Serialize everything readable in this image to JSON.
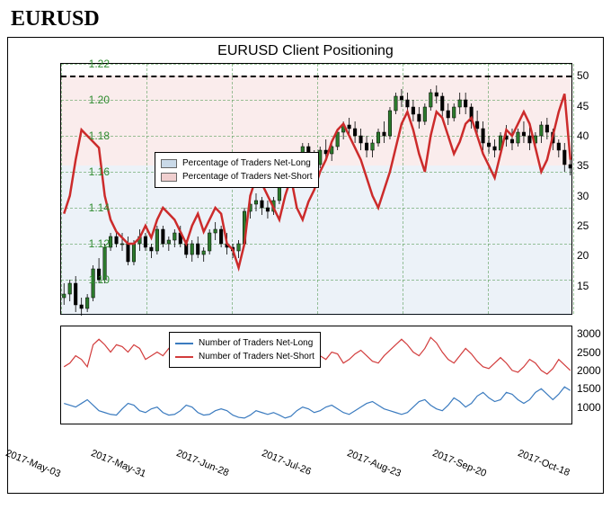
{
  "page_title": "EURUSD",
  "chart_title": "EURUSD Client Positioning",
  "main": {
    "left_axis": {
      "color": "#2e8b2e",
      "min": 1.08,
      "max": 1.22,
      "ticks": [
        1.1,
        1.12,
        1.14,
        1.16,
        1.18,
        1.2,
        1.22
      ],
      "candle_color": "#2c7a2c"
    },
    "right_axis": {
      "color": "#000000",
      "min": 10,
      "max": 52,
      "ticks": [
        15,
        20,
        25,
        30,
        35,
        40,
        45,
        50
      ],
      "threshold": 50
    },
    "pct_short_line_color": "#cc2b2b",
    "pct_short_line_width": 2.5,
    "shade_long_color": "rgba(100,150,200,0.12)",
    "shade_short_color": "rgba(220,120,120,0.14)",
    "shade_split_pct": 35,
    "grid_color": "#5a9e5a",
    "legend": {
      "long_label": "Percentage of Traders Net-Long",
      "short_label": "Percentage of Traders Net-Short",
      "long_swatch": "#c9d9e8",
      "short_swatch": "#f0cfcf"
    },
    "price_data": [
      {
        "o": 1.09,
        "h": 1.098,
        "l": 1.086,
        "c": 1.092
      },
      {
        "o": 1.092,
        "h": 1.1,
        "l": 1.088,
        "c": 1.098
      },
      {
        "o": 1.098,
        "h": 1.102,
        "l": 1.082,
        "c": 1.086
      },
      {
        "o": 1.086,
        "h": 1.09,
        "l": 1.08,
        "c": 1.084
      },
      {
        "o": 1.084,
        "h": 1.092,
        "l": 1.082,
        "c": 1.09
      },
      {
        "o": 1.09,
        "h": 1.108,
        "l": 1.088,
        "c": 1.106
      },
      {
        "o": 1.106,
        "h": 1.112,
        "l": 1.098,
        "c": 1.1
      },
      {
        "o": 1.1,
        "h": 1.12,
        "l": 1.098,
        "c": 1.118
      },
      {
        "o": 1.118,
        "h": 1.126,
        "l": 1.116,
        "c": 1.124
      },
      {
        "o": 1.124,
        "h": 1.126,
        "l": 1.118,
        "c": 1.12
      },
      {
        "o": 1.12,
        "h": 1.126,
        "l": 1.116,
        "c": 1.12
      },
      {
        "o": 1.12,
        "h": 1.124,
        "l": 1.108,
        "c": 1.11
      },
      {
        "o": 1.11,
        "h": 1.122,
        "l": 1.108,
        "c": 1.12
      },
      {
        "o": 1.12,
        "h": 1.128,
        "l": 1.116,
        "c": 1.124
      },
      {
        "o": 1.124,
        "h": 1.126,
        "l": 1.116,
        "c": 1.118
      },
      {
        "o": 1.118,
        "h": 1.12,
        "l": 1.112,
        "c": 1.116
      },
      {
        "o": 1.116,
        "h": 1.13,
        "l": 1.114,
        "c": 1.128
      },
      {
        "o": 1.128,
        "h": 1.13,
        "l": 1.118,
        "c": 1.12
      },
      {
        "o": 1.12,
        "h": 1.124,
        "l": 1.116,
        "c": 1.122
      },
      {
        "o": 1.122,
        "h": 1.128,
        "l": 1.118,
        "c": 1.126
      },
      {
        "o": 1.126,
        "h": 1.13,
        "l": 1.118,
        "c": 1.12
      },
      {
        "o": 1.12,
        "h": 1.122,
        "l": 1.112,
        "c": 1.114
      },
      {
        "o": 1.114,
        "h": 1.122,
        "l": 1.11,
        "c": 1.12
      },
      {
        "o": 1.12,
        "h": 1.124,
        "l": 1.112,
        "c": 1.114
      },
      {
        "o": 1.114,
        "h": 1.118,
        "l": 1.11,
        "c": 1.116
      },
      {
        "o": 1.116,
        "h": 1.128,
        "l": 1.114,
        "c": 1.126
      },
      {
        "o": 1.126,
        "h": 1.132,
        "l": 1.122,
        "c": 1.128
      },
      {
        "o": 1.128,
        "h": 1.13,
        "l": 1.118,
        "c": 1.12
      },
      {
        "o": 1.12,
        "h": 1.126,
        "l": 1.114,
        "c": 1.118
      },
      {
        "o": 1.118,
        "h": 1.12,
        "l": 1.112,
        "c": 1.116
      },
      {
        "o": 1.116,
        "h": 1.122,
        "l": 1.112,
        "c": 1.12
      },
      {
        "o": 1.12,
        "h": 1.14,
        "l": 1.118,
        "c": 1.138
      },
      {
        "o": 1.138,
        "h": 1.146,
        "l": 1.134,
        "c": 1.142
      },
      {
        "o": 1.142,
        "h": 1.148,
        "l": 1.138,
        "c": 1.144
      },
      {
        "o": 1.144,
        "h": 1.146,
        "l": 1.136,
        "c": 1.14
      },
      {
        "o": 1.14,
        "h": 1.144,
        "l": 1.134,
        "c": 1.138
      },
      {
        "o": 1.138,
        "h": 1.146,
        "l": 1.136,
        "c": 1.144
      },
      {
        "o": 1.144,
        "h": 1.156,
        "l": 1.142,
        "c": 1.154
      },
      {
        "o": 1.154,
        "h": 1.164,
        "l": 1.152,
        "c": 1.162
      },
      {
        "o": 1.162,
        "h": 1.166,
        "l": 1.156,
        "c": 1.16
      },
      {
        "o": 1.16,
        "h": 1.168,
        "l": 1.158,
        "c": 1.166
      },
      {
        "o": 1.166,
        "h": 1.176,
        "l": 1.162,
        "c": 1.174
      },
      {
        "o": 1.174,
        "h": 1.176,
        "l": 1.162,
        "c": 1.166
      },
      {
        "o": 1.166,
        "h": 1.172,
        "l": 1.16,
        "c": 1.164
      },
      {
        "o": 1.164,
        "h": 1.174,
        "l": 1.162,
        "c": 1.172
      },
      {
        "o": 1.172,
        "h": 1.178,
        "l": 1.166,
        "c": 1.17
      },
      {
        "o": 1.17,
        "h": 1.176,
        "l": 1.166,
        "c": 1.174
      },
      {
        "o": 1.174,
        "h": 1.184,
        "l": 1.172,
        "c": 1.182
      },
      {
        "o": 1.182,
        "h": 1.188,
        "l": 1.178,
        "c": 1.186
      },
      {
        "o": 1.186,
        "h": 1.19,
        "l": 1.18,
        "c": 1.184
      },
      {
        "o": 1.184,
        "h": 1.188,
        "l": 1.176,
        "c": 1.18
      },
      {
        "o": 1.18,
        "h": 1.184,
        "l": 1.172,
        "c": 1.176
      },
      {
        "o": 1.176,
        "h": 1.18,
        "l": 1.168,
        "c": 1.172
      },
      {
        "o": 1.172,
        "h": 1.178,
        "l": 1.168,
        "c": 1.176
      },
      {
        "o": 1.176,
        "h": 1.184,
        "l": 1.174,
        "c": 1.182
      },
      {
        "o": 1.182,
        "h": 1.188,
        "l": 1.176,
        "c": 1.18
      },
      {
        "o": 1.18,
        "h": 1.196,
        "l": 1.178,
        "c": 1.194
      },
      {
        "o": 1.194,
        "h": 1.204,
        "l": 1.192,
        "c": 1.202
      },
      {
        "o": 1.202,
        "h": 1.206,
        "l": 1.196,
        "c": 1.2
      },
      {
        "o": 1.2,
        "h": 1.204,
        "l": 1.192,
        "c": 1.196
      },
      {
        "o": 1.196,
        "h": 1.2,
        "l": 1.188,
        "c": 1.192
      },
      {
        "o": 1.192,
        "h": 1.196,
        "l": 1.184,
        "c": 1.188
      },
      {
        "o": 1.188,
        "h": 1.198,
        "l": 1.186,
        "c": 1.196
      },
      {
        "o": 1.196,
        "h": 1.206,
        "l": 1.194,
        "c": 1.204
      },
      {
        "o": 1.204,
        "h": 1.208,
        "l": 1.198,
        "c": 1.202
      },
      {
        "o": 1.202,
        "h": 1.204,
        "l": 1.19,
        "c": 1.194
      },
      {
        "o": 1.194,
        "h": 1.198,
        "l": 1.186,
        "c": 1.19
      },
      {
        "o": 1.19,
        "h": 1.198,
        "l": 1.188,
        "c": 1.196
      },
      {
        "o": 1.196,
        "h": 1.204,
        "l": 1.192,
        "c": 1.2
      },
      {
        "o": 1.2,
        "h": 1.204,
        "l": 1.192,
        "c": 1.196
      },
      {
        "o": 1.196,
        "h": 1.198,
        "l": 1.184,
        "c": 1.188
      },
      {
        "o": 1.188,
        "h": 1.194,
        "l": 1.18,
        "c": 1.184
      },
      {
        "o": 1.184,
        "h": 1.188,
        "l": 1.172,
        "c": 1.176
      },
      {
        "o": 1.176,
        "h": 1.18,
        "l": 1.17,
        "c": 1.174
      },
      {
        "o": 1.174,
        "h": 1.178,
        "l": 1.168,
        "c": 1.172
      },
      {
        "o": 1.172,
        "h": 1.182,
        "l": 1.17,
        "c": 1.18
      },
      {
        "o": 1.18,
        "h": 1.186,
        "l": 1.174,
        "c": 1.178
      },
      {
        "o": 1.178,
        "h": 1.184,
        "l": 1.172,
        "c": 1.176
      },
      {
        "o": 1.176,
        "h": 1.184,
        "l": 1.174,
        "c": 1.182
      },
      {
        "o": 1.182,
        "h": 1.188,
        "l": 1.176,
        "c": 1.18
      },
      {
        "o": 1.18,
        "h": 1.186,
        "l": 1.172,
        "c": 1.176
      },
      {
        "o": 1.176,
        "h": 1.182,
        "l": 1.172,
        "c": 1.18
      },
      {
        "o": 1.18,
        "h": 1.188,
        "l": 1.176,
        "c": 1.186
      },
      {
        "o": 1.186,
        "h": 1.19,
        "l": 1.178,
        "c": 1.182
      },
      {
        "o": 1.182,
        "h": 1.184,
        "l": 1.172,
        "c": 1.176
      },
      {
        "o": 1.176,
        "h": 1.178,
        "l": 1.168,
        "c": 1.172
      },
      {
        "o": 1.172,
        "h": 1.176,
        "l": 1.16,
        "c": 1.164
      },
      {
        "o": 1.164,
        "h": 1.168,
        "l": 1.158,
        "c": 1.162
      }
    ],
    "pct_short_data": [
      27,
      30,
      36,
      41,
      40,
      39,
      38,
      30,
      26,
      24,
      23,
      22,
      22,
      23,
      25,
      23,
      26,
      28,
      27,
      26,
      24,
      22,
      25,
      27,
      24,
      26,
      28,
      27,
      22,
      21,
      18,
      22,
      30,
      33,
      32,
      30,
      28,
      26,
      30,
      33,
      28,
      26,
      29,
      31,
      34,
      36,
      39,
      41,
      42,
      40,
      38,
      36,
      33,
      30,
      28,
      31,
      34,
      38,
      42,
      44,
      41,
      37,
      34,
      40,
      44,
      43,
      40,
      37,
      39,
      42,
      43,
      40,
      37,
      35,
      33,
      37,
      41,
      40,
      42,
      44,
      42,
      38,
      34,
      36,
      40,
      44,
      47,
      36
    ]
  },
  "sub": {
    "y_min": 500,
    "y_max": 3200,
    "ticks": [
      1000,
      1500,
      2000,
      2500,
      3000
    ],
    "long_line_color": "#3b7bbf",
    "short_line_color": "#d23c3c",
    "line_width": 1.2,
    "legend": {
      "long_label": "Number of Traders Net-Long",
      "short_label": "Number of Traders Net-Short"
    },
    "long_data": [
      1100,
      1050,
      1000,
      1100,
      1200,
      1050,
      900,
      850,
      800,
      780,
      950,
      1100,
      1050,
      900,
      850,
      950,
      1000,
      850,
      780,
      800,
      900,
      1050,
      1000,
      850,
      780,
      800,
      900,
      950,
      900,
      780,
      720,
      700,
      780,
      900,
      850,
      800,
      850,
      780,
      700,
      750,
      900,
      1000,
      950,
      850,
      900,
      1000,
      1050,
      950,
      850,
      800,
      900,
      1000,
      1100,
      1150,
      1050,
      950,
      900,
      850,
      800,
      850,
      1000,
      1150,
      1200,
      1050,
      950,
      900,
      1050,
      1250,
      1150,
      1000,
      1100,
      1300,
      1400,
      1250,
      1150,
      1200,
      1400,
      1350,
      1200,
      1100,
      1200,
      1400,
      1500,
      1350,
      1200,
      1350,
      1550,
      1450
    ],
    "short_data": [
      2100,
      2200,
      2400,
      2300,
      2100,
      2700,
      2850,
      2700,
      2500,
      2700,
      2650,
      2500,
      2700,
      2600,
      2300,
      2400,
      2500,
      2400,
      2600,
      2500,
      2300,
      2200,
      2350,
      2450,
      2200,
      2300,
      2500,
      2400,
      2100,
      2300,
      2400,
      2700,
      2850,
      2900,
      2750,
      2700,
      2800,
      2950,
      2800,
      2600,
      2400,
      2350,
      2500,
      2650,
      2400,
      2300,
      2500,
      2450,
      2200,
      2300,
      2450,
      2550,
      2400,
      2250,
      2200,
      2400,
      2550,
      2700,
      2850,
      2700,
      2500,
      2400,
      2600,
      2900,
      2750,
      2500,
      2300,
      2200,
      2400,
      2600,
      2450,
      2250,
      2100,
      2050,
      2200,
      2350,
      2200,
      2000,
      1950,
      2100,
      2300,
      2200,
      2000,
      1900,
      2050,
      2300,
      2150,
      2000
    ]
  },
  "x_axis": {
    "labels": [
      "2017-May-03",
      "2017-May-31",
      "2017-Jun-28",
      "2017-Jul-26",
      "2017-Aug-23",
      "2017-Sep-20",
      "2017-Oct-18"
    ],
    "n_points": 88
  }
}
